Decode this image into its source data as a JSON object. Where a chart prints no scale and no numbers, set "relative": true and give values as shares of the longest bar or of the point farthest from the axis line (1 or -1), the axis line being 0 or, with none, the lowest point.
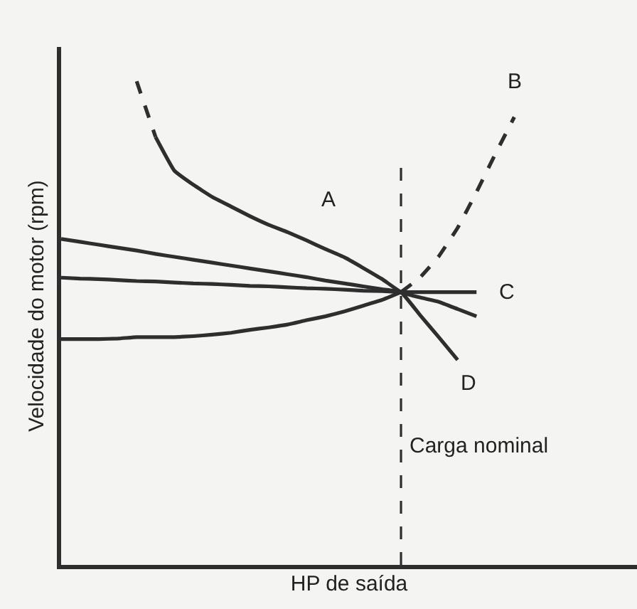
{
  "chart_data": {
    "type": "line",
    "relative": true,
    "xlabel": "HP de saída",
    "ylabel": "Velocidade do motor (rpm)",
    "categories": [
      null,
      null,
      null,
      null,
      null,
      null,
      null,
      null,
      null,
      null,
      null,
      null,
      null,
      null,
      null,
      null,
      null,
      null,
      null,
      null,
      null,
      null,
      null,
      null,
      null
    ],
    "series": [
      {
        "color": "#2e2e2e",
        "line_style": "dashed",
        "values": [
          null,
          null,
          null,
          null,
          1.0,
          0.885,
          null,
          null,
          null,
          null,
          null,
          null,
          null,
          null,
          null,
          null,
          null,
          null,
          null,
          null,
          null,
          null,
          null,
          null,
          null
        ]
      },
      {
        "name": "A",
        "color": "#2e2e2e",
        "line_style": "solid",
        "values": [
          null,
          null,
          null,
          null,
          null,
          0.885,
          0.815,
          0.786,
          0.761,
          0.741,
          0.721,
          0.703,
          0.688,
          0.671,
          0.653,
          0.636,
          0.614,
          0.591,
          0.564,
          0.553,
          0.544,
          0.529,
          0.514,
          null,
          null
        ]
      },
      {
        "color": "#2e2e2e",
        "line_style": "solid",
        "values": [
          0.467,
          0.467,
          0.467,
          0.468,
          0.471,
          0.471,
          0.471,
          0.473,
          0.476,
          0.48,
          0.486,
          0.491,
          0.497,
          0.506,
          0.514,
          0.524,
          0.536,
          0.548,
          0.564,
          null,
          null,
          null,
          null,
          null,
          null
        ]
      },
      {
        "name": "B",
        "color": "#2e2e2e",
        "line_style": "dashed",
        "values": [
          null,
          null,
          null,
          null,
          null,
          null,
          null,
          null,
          null,
          null,
          null,
          null,
          null,
          null,
          null,
          null,
          null,
          null,
          0.564,
          0.594,
          0.638,
          0.697,
          0.771,
          0.85,
          0.926
        ]
      },
      {
        "name": "C",
        "color": "#2e2e2e",
        "line_style": "solid",
        "values": [
          0.594,
          0.592,
          0.591,
          0.589,
          0.587,
          0.586,
          0.584,
          0.582,
          0.581,
          0.579,
          0.577,
          0.576,
          0.574,
          0.572,
          0.571,
          0.569,
          0.567,
          0.566,
          0.564,
          0.564,
          0.564,
          0.564,
          0.564,
          null,
          null
        ]
      },
      {
        "name": "D",
        "color": "#2e2e2e",
        "line_style": "solid",
        "values": [
          0.674,
          0.668,
          0.662,
          0.656,
          0.65,
          0.643,
          0.637,
          0.631,
          0.625,
          0.619,
          0.613,
          0.607,
          0.601,
          0.595,
          0.588,
          0.582,
          0.576,
          0.57,
          0.564,
          0.517,
          0.471,
          0.424,
          null,
          null,
          null
        ]
      }
    ],
    "annotations": [
      "Carga nominal"
    ],
    "grid": false,
    "legend": false,
    "marker": "none"
  }
}
